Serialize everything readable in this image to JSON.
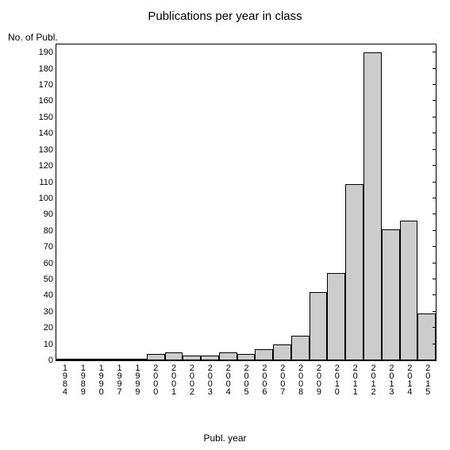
{
  "chart": {
    "type": "bar",
    "title": "Publications per year in class",
    "title_fontsize": 15,
    "y_axis_title": "No. of Publ.",
    "x_axis_title": "Publ. year",
    "label_fontsize": 12,
    "tick_fontsize": 11,
    "background_color": "#ffffff",
    "bar_fill": "#cccccc",
    "bar_border": "#000000",
    "axis_color": "#000000",
    "categories": [
      "1984",
      "1989",
      "1990",
      "1997",
      "1999",
      "2000",
      "2001",
      "2002",
      "2003",
      "2004",
      "2005",
      "2006",
      "2007",
      "2008",
      "2009",
      "2010",
      "2011",
      "2012",
      "2013",
      "2014",
      "2015"
    ],
    "values": [
      1,
      1,
      1,
      1,
      1,
      4,
      5,
      3,
      3,
      5,
      4,
      7,
      10,
      15,
      42,
      54,
      109,
      190,
      81,
      86,
      29
    ],
    "ylim": [
      0,
      195
    ],
    "yticks": [
      0,
      10,
      20,
      30,
      40,
      50,
      60,
      70,
      80,
      90,
      100,
      110,
      120,
      130,
      140,
      150,
      160,
      170,
      180,
      190
    ]
  }
}
